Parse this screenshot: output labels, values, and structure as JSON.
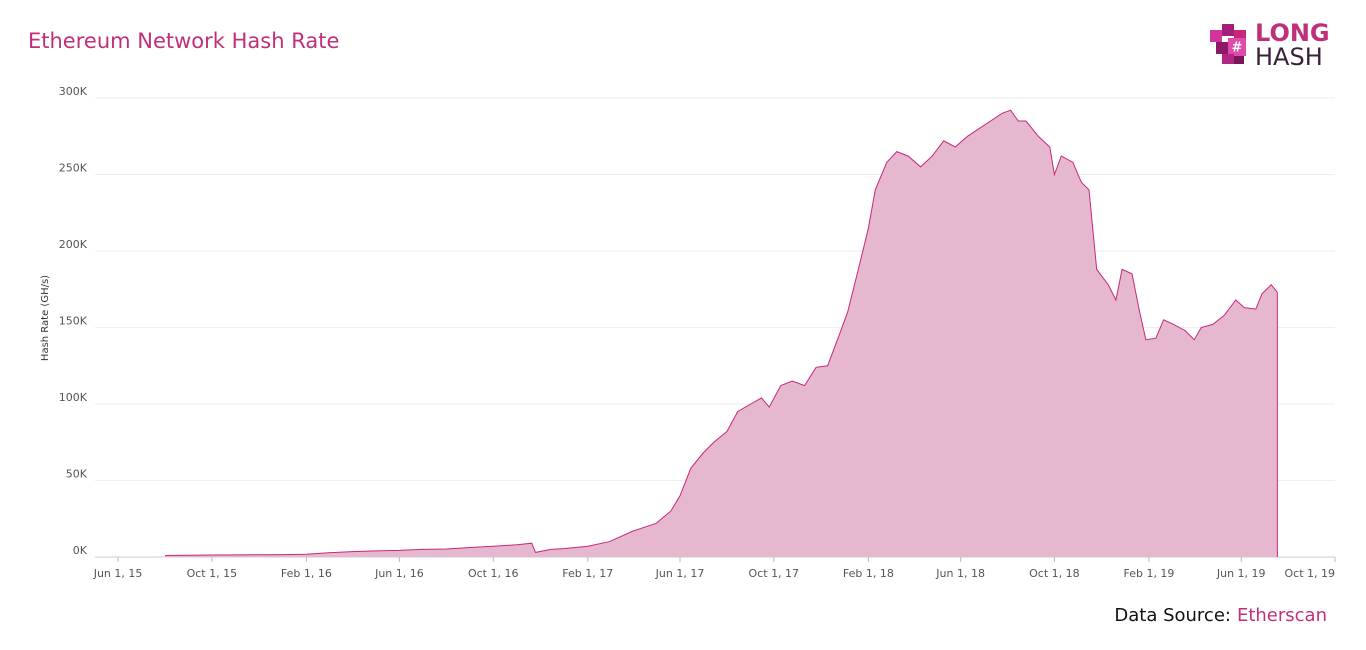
{
  "chart_data": {
    "type": "area",
    "title": "Ethereum Network Hash Rate",
    "y_label": "Hash Rate (GH/s)",
    "logo": {
      "top": "LONG",
      "bottom": "HASH"
    },
    "source": {
      "label": "Data Source:",
      "name": "Etherscan"
    },
    "color": "#c8267d",
    "fill_color": "#e6b8cf",
    "grid": true,
    "xlim": [
      "2015-05-02",
      "2019-10-01"
    ],
    "xticks": [
      {
        "value": "2015-06-01",
        "label": "Jun 1, 15"
      },
      {
        "value": "2015-10-01",
        "label": "Oct 1, 15"
      },
      {
        "value": "2016-02-01",
        "label": "Feb 1, 16"
      },
      {
        "value": "2016-06-01",
        "label": "Jun 1, 16"
      },
      {
        "value": "2016-10-01",
        "label": "Oct 1, 16"
      },
      {
        "value": "2017-02-01",
        "label": "Feb 1, 17"
      },
      {
        "value": "2017-06-01",
        "label": "Jun 1, 17"
      },
      {
        "value": "2017-10-01",
        "label": "Oct 1, 17"
      },
      {
        "value": "2018-02-01",
        "label": "Feb 1, 18"
      },
      {
        "value": "2018-06-01",
        "label": "Jun 1, 18"
      },
      {
        "value": "2018-10-01",
        "label": "Oct 1, 18"
      },
      {
        "value": "2019-02-01",
        "label": "Feb 1, 19"
      },
      {
        "value": "2019-06-01",
        "label": "Jun 1, 19"
      },
      {
        "value": "2019-10-01",
        "label": "Oct 1, 19"
      }
    ],
    "ylim": [
      0,
      300000
    ],
    "yticks": [
      {
        "value": 0,
        "label": "0K"
      },
      {
        "value": 50000,
        "label": "50K"
      },
      {
        "value": 100000,
        "label": "100K"
      },
      {
        "value": 150000,
        "label": "150K"
      },
      {
        "value": 200000,
        "label": "200K"
      },
      {
        "value": 250000,
        "label": "250K"
      },
      {
        "value": 300000,
        "label": "300K"
      }
    ],
    "x": [
      "2015-08-01",
      "2015-09-01",
      "2015-10-01",
      "2015-11-01",
      "2015-12-01",
      "2016-01-01",
      "2016-02-01",
      "2016-03-01",
      "2016-04-01",
      "2016-05-01",
      "2016-06-01",
      "2016-07-01",
      "2016-08-01",
      "2016-09-01",
      "2016-10-01",
      "2016-11-01",
      "2016-11-20",
      "2016-11-25",
      "2016-12-15",
      "2017-01-01",
      "2017-02-01",
      "2017-03-01",
      "2017-04-01",
      "2017-05-01",
      "2017-05-20",
      "2017-06-01",
      "2017-06-15",
      "2017-07-01",
      "2017-07-15",
      "2017-08-01",
      "2017-08-15",
      "2017-09-01",
      "2017-09-15",
      "2017-09-25",
      "2017-10-10",
      "2017-10-25",
      "2017-11-10",
      "2017-11-25",
      "2017-12-10",
      "2017-12-25",
      "2018-01-05",
      "2018-01-20",
      "2018-02-01",
      "2018-02-10",
      "2018-02-25",
      "2018-03-10",
      "2018-03-25",
      "2018-04-10",
      "2018-04-25",
      "2018-05-10",
      "2018-05-25",
      "2018-06-10",
      "2018-06-25",
      "2018-07-10",
      "2018-07-25",
      "2018-08-05",
      "2018-08-15",
      "2018-08-25",
      "2018-09-10",
      "2018-09-25",
      "2018-10-01",
      "2018-10-10",
      "2018-10-25",
      "2018-11-05",
      "2018-11-15",
      "2018-11-25",
      "2018-12-10",
      "2018-12-20",
      "2018-12-28",
      "2019-01-10",
      "2019-01-20",
      "2019-01-28",
      "2019-02-10",
      "2019-02-20",
      "2019-03-05",
      "2019-03-20",
      "2019-04-01",
      "2019-04-10",
      "2019-04-25",
      "2019-05-10",
      "2019-05-25",
      "2019-06-05",
      "2019-06-20",
      "2019-06-28",
      "2019-07-10",
      "2019-07-18"
    ],
    "values": [
      1000,
      1200,
      1300,
      1400,
      1500,
      1600,
      1800,
      2800,
      3500,
      4000,
      4300,
      5000,
      5200,
      6200,
      7000,
      8000,
      9000,
      3000,
      5000,
      5500,
      7000,
      10000,
      17000,
      22000,
      30000,
      40000,
      58000,
      68000,
      75000,
      82000,
      95000,
      100000,
      104000,
      98000,
      112000,
      115000,
      112000,
      124000,
      125000,
      145000,
      160000,
      190000,
      215000,
      240000,
      258000,
      265000,
      262000,
      255000,
      262000,
      272000,
      268000,
      275000,
      280000,
      285000,
      290000,
      292000,
      285000,
      285000,
      275000,
      268000,
      250000,
      262000,
      258000,
      245000,
      240000,
      188000,
      178000,
      168000,
      188000,
      185000,
      160000,
      142000,
      143000,
      155000,
      152000,
      148000,
      142000,
      150000,
      152000,
      158000,
      168000,
      163000,
      162000,
      172000,
      178000,
      173000
    ]
  }
}
